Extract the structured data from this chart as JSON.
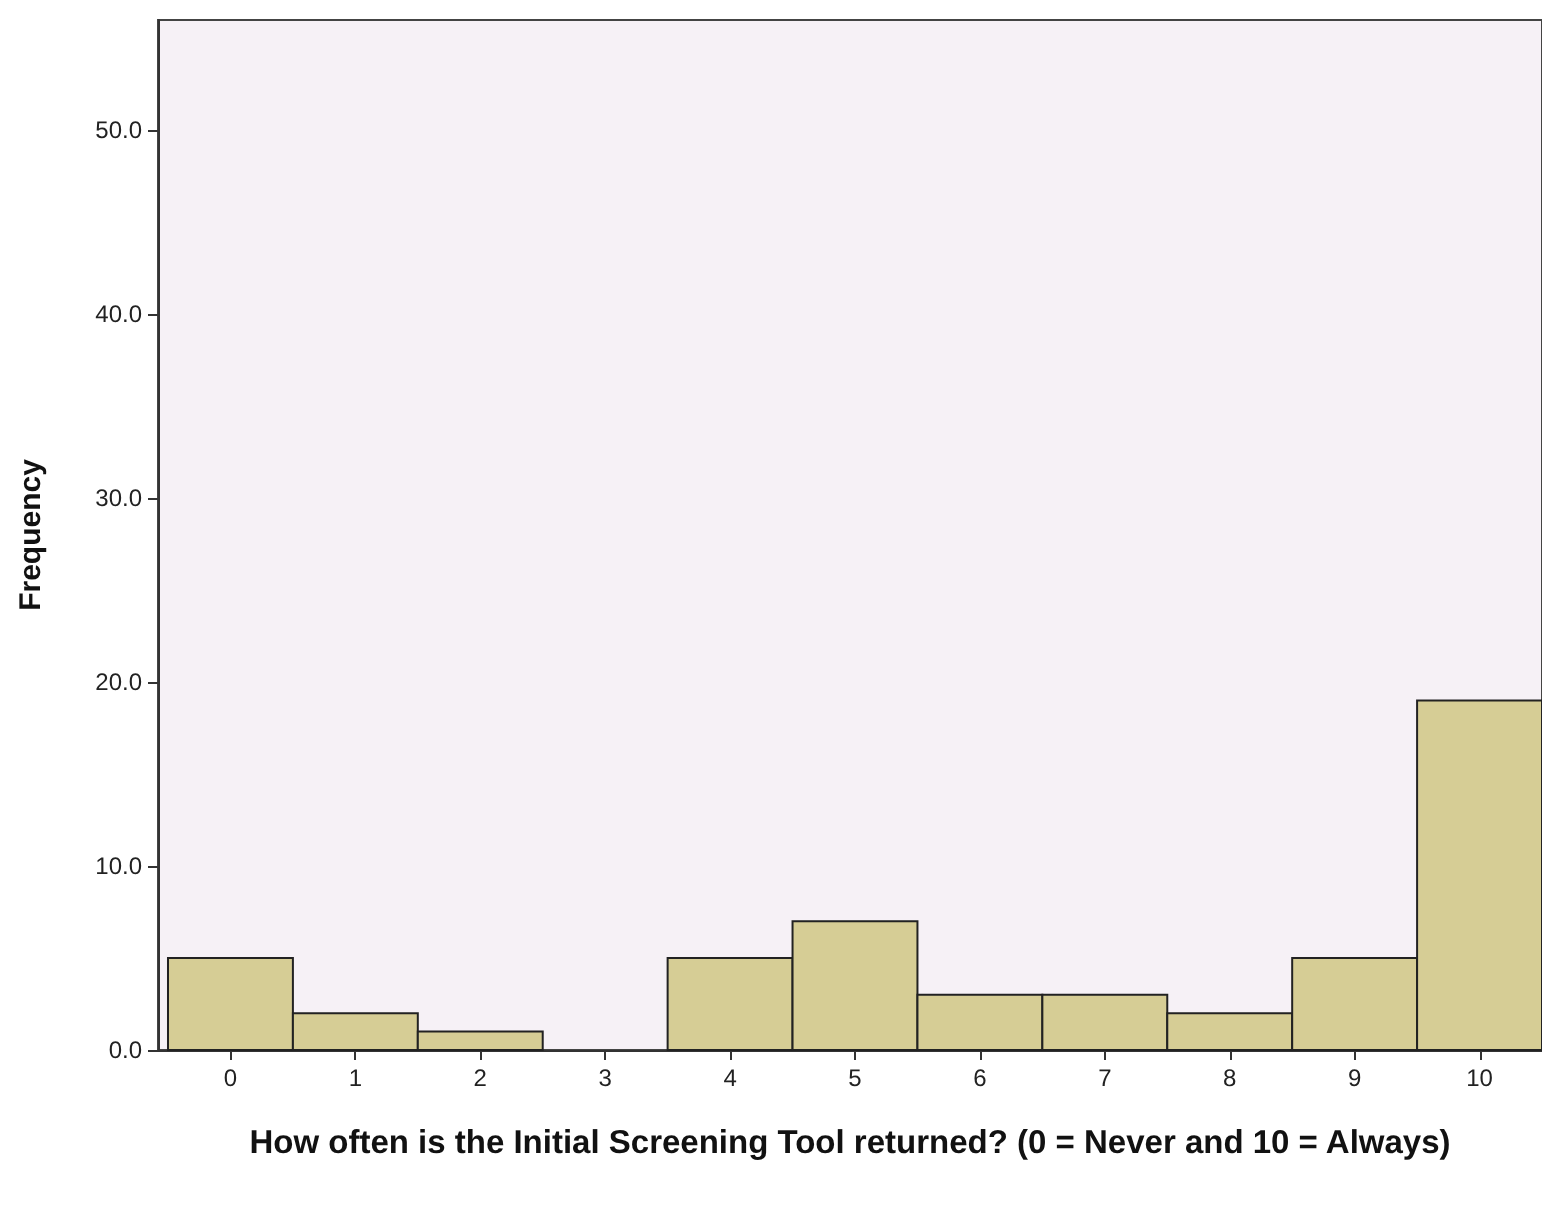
{
  "chart_data": {
    "type": "histogram",
    "xlabel": "How often is the Initial Screening Tool returned? (0 = Never and 10 = Always)",
    "ylabel": "Frequency",
    "bins": [
      -0.5,
      0.5,
      1.5,
      2.5,
      3.5,
      4.5,
      5.5,
      6.5,
      7.5,
      8.5,
      9.5,
      10.5
    ],
    "values": [
      5,
      2,
      1,
      0,
      5,
      7,
      3,
      3,
      2,
      5,
      19
    ],
    "color": "#d6cd95",
    "xlim": [
      -0.58,
      10.5
    ],
    "xticks": [
      0,
      1,
      2,
      3,
      4,
      5,
      6,
      7,
      8,
      9,
      10
    ],
    "ylim": [
      0,
      56
    ],
    "yticks": [
      {
        "value": 0,
        "label": "0.0"
      },
      {
        "value": 10,
        "label": "10.0"
      },
      {
        "value": 20,
        "label": "20.0"
      },
      {
        "value": 30,
        "label": "30.0"
      },
      {
        "value": 40,
        "label": "40.0"
      },
      {
        "value": 50,
        "label": "50.0"
      }
    ]
  }
}
